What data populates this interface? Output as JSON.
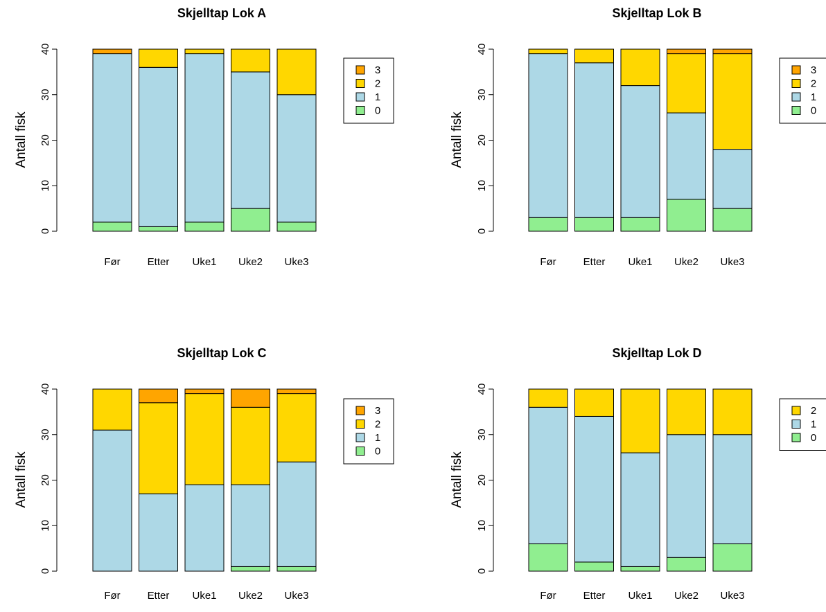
{
  "chart_data": [
    {
      "type": "bar",
      "stacked": true,
      "title": "Skjelltap Lok A",
      "ylabel": "Antall fisk",
      "xlabel": "",
      "categories": [
        "Før",
        "Etter",
        "Uke1",
        "Uke2",
        "Uke3"
      ],
      "ylim": [
        0,
        40
      ],
      "yticks": [
        "0",
        "10",
        "20",
        "30",
        "40"
      ],
      "series": [
        {
          "name": "0",
          "color": "#90EE90",
          "values": [
            2,
            1,
            2,
            5,
            2
          ]
        },
        {
          "name": "1",
          "color": "#ADD8E6",
          "values": [
            37,
            35,
            37,
            30,
            28
          ]
        },
        {
          "name": "2",
          "color": "#FFD700",
          "values": [
            0,
            4,
            1,
            5,
            10
          ]
        },
        {
          "name": "3",
          "color": "#FFA500",
          "values": [
            1,
            0,
            0,
            0,
            0
          ]
        }
      ],
      "legend_entries": [
        "3",
        "2",
        "1",
        "0"
      ],
      "legend_position": "right"
    },
    {
      "type": "bar",
      "stacked": true,
      "title": "Skjelltap Lok B",
      "ylabel": "Antall fisk",
      "xlabel": "",
      "categories": [
        "Før",
        "Etter",
        "Uke1",
        "Uke2",
        "Uke3"
      ],
      "ylim": [
        0,
        40
      ],
      "yticks": [
        "0",
        "10",
        "20",
        "30",
        "40"
      ],
      "series": [
        {
          "name": "0",
          "color": "#90EE90",
          "values": [
            3,
            3,
            3,
            7,
            5
          ]
        },
        {
          "name": "1",
          "color": "#ADD8E6",
          "values": [
            36,
            34,
            29,
            19,
            13
          ]
        },
        {
          "name": "2",
          "color": "#FFD700",
          "values": [
            1,
            3,
            8,
            13,
            21
          ]
        },
        {
          "name": "3",
          "color": "#FFA500",
          "values": [
            0,
            0,
            0,
            1,
            1
          ]
        }
      ],
      "legend_entries": [
        "3",
        "2",
        "1",
        "0"
      ],
      "legend_position": "right"
    },
    {
      "type": "bar",
      "stacked": true,
      "title": "Skjelltap Lok C",
      "ylabel": "Antall fisk",
      "xlabel": "",
      "categories": [
        "Før",
        "Etter",
        "Uke1",
        "Uke2",
        "Uke3"
      ],
      "ylim": [
        0,
        40
      ],
      "yticks": [
        "0",
        "10",
        "20",
        "30",
        "40"
      ],
      "series": [
        {
          "name": "0",
          "color": "#90EE90",
          "values": [
            0,
            0,
            0,
            1,
            1
          ]
        },
        {
          "name": "1",
          "color": "#ADD8E6",
          "values": [
            31,
            17,
            19,
            18,
            23
          ]
        },
        {
          "name": "2",
          "color": "#FFD700",
          "values": [
            9,
            20,
            20,
            17,
            15
          ]
        },
        {
          "name": "3",
          "color": "#FFA500",
          "values": [
            0,
            3,
            1,
            4,
            1
          ]
        }
      ],
      "legend_entries": [
        "3",
        "2",
        "1",
        "0"
      ],
      "legend_position": "right"
    },
    {
      "type": "bar",
      "stacked": true,
      "title": "Skjelltap Lok D",
      "ylabel": "Antall fisk",
      "xlabel": "",
      "categories": [
        "Før",
        "Etter",
        "Uke1",
        "Uke2",
        "Uke3"
      ],
      "ylim": [
        0,
        40
      ],
      "yticks": [
        "0",
        "10",
        "20",
        "30",
        "40"
      ],
      "series": [
        {
          "name": "0",
          "color": "#90EE90",
          "values": [
            6,
            2,
            1,
            3,
            6
          ]
        },
        {
          "name": "1",
          "color": "#ADD8E6",
          "values": [
            30,
            32,
            25,
            27,
            24
          ]
        },
        {
          "name": "2",
          "color": "#FFD700",
          "values": [
            4,
            6,
            14,
            10,
            10
          ]
        }
      ],
      "legend_entries": [
        "2",
        "1",
        "0"
      ],
      "legend_position": "right"
    }
  ]
}
